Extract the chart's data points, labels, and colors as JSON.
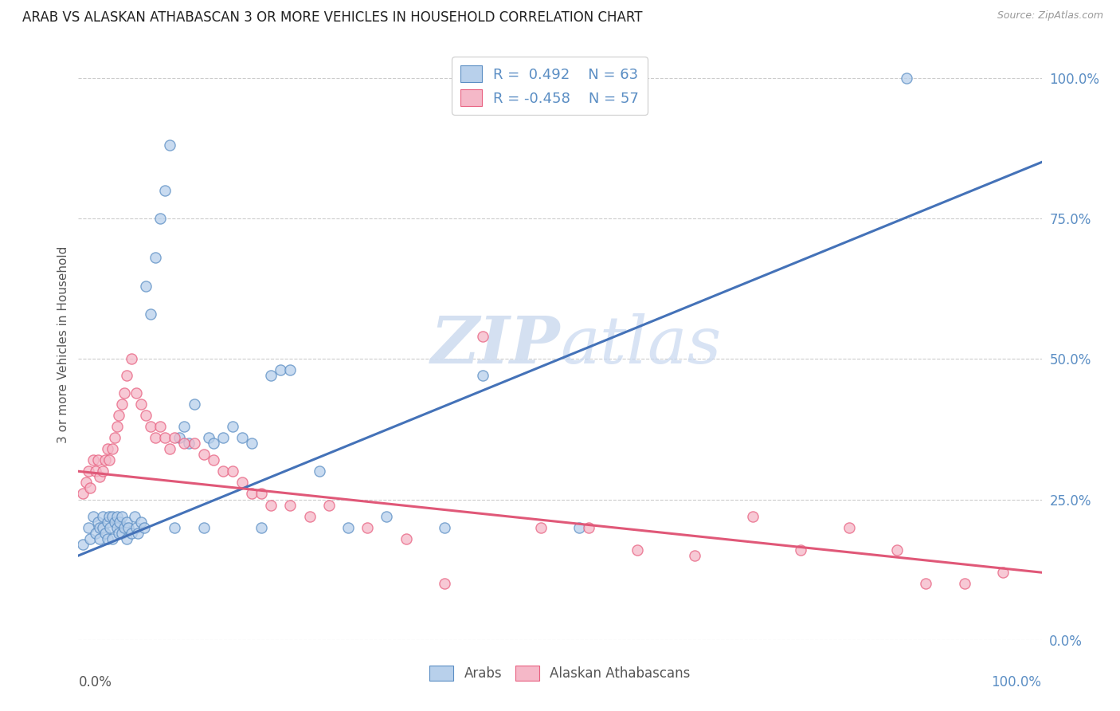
{
  "title": "ARAB VS ALASKAN ATHABASCAN 3 OR MORE VEHICLES IN HOUSEHOLD CORRELATION CHART",
  "source": "Source: ZipAtlas.com",
  "ylabel": "3 or more Vehicles in Household",
  "xlim": [
    0.0,
    1.0
  ],
  "ylim": [
    0.0,
    1.05
  ],
  "ytick_labels": [
    "0.0%",
    "25.0%",
    "50.0%",
    "75.0%",
    "100.0%"
  ],
  "ytick_values": [
    0.0,
    0.25,
    0.5,
    0.75,
    1.0
  ],
  "legend_arab_r": "0.492",
  "legend_arab_n": "63",
  "legend_athabascan_r": "-0.458",
  "legend_athabascan_n": "57",
  "arab_fill_color": "#b8d0eb",
  "athabascan_fill_color": "#f5b8c8",
  "arab_edge_color": "#5b8ec4",
  "athabascan_edge_color": "#e86080",
  "arab_line_color": "#4472b8",
  "athabascan_line_color": "#e05878",
  "watermark_color": "#d0ddf0",
  "tick_color": "#5b8ec4",
  "background_color": "#ffffff",
  "arab_scatter_x": [
    0.005,
    0.01,
    0.012,
    0.015,
    0.018,
    0.02,
    0.022,
    0.022,
    0.025,
    0.025,
    0.028,
    0.03,
    0.03,
    0.032,
    0.033,
    0.035,
    0.035,
    0.038,
    0.04,
    0.04,
    0.042,
    0.043,
    0.045,
    0.045,
    0.048,
    0.05,
    0.05,
    0.052,
    0.055,
    0.058,
    0.06,
    0.062,
    0.065,
    0.068,
    0.07,
    0.075,
    0.08,
    0.085,
    0.09,
    0.095,
    0.1,
    0.105,
    0.11,
    0.115,
    0.12,
    0.13,
    0.135,
    0.14,
    0.15,
    0.16,
    0.17,
    0.18,
    0.19,
    0.2,
    0.21,
    0.22,
    0.25,
    0.28,
    0.32,
    0.38,
    0.42,
    0.52,
    0.86
  ],
  "arab_scatter_y": [
    0.17,
    0.2,
    0.18,
    0.22,
    0.19,
    0.21,
    0.2,
    0.18,
    0.22,
    0.2,
    0.19,
    0.21,
    0.18,
    0.22,
    0.2,
    0.18,
    0.22,
    0.21,
    0.22,
    0.2,
    0.19,
    0.21,
    0.22,
    0.19,
    0.2,
    0.21,
    0.18,
    0.2,
    0.19,
    0.22,
    0.2,
    0.19,
    0.21,
    0.2,
    0.63,
    0.58,
    0.68,
    0.75,
    0.8,
    0.88,
    0.2,
    0.36,
    0.38,
    0.35,
    0.42,
    0.2,
    0.36,
    0.35,
    0.36,
    0.38,
    0.36,
    0.35,
    0.2,
    0.47,
    0.48,
    0.48,
    0.3,
    0.2,
    0.22,
    0.2,
    0.47,
    0.2,
    1.0
  ],
  "athabascan_scatter_x": [
    0.005,
    0.008,
    0.01,
    0.012,
    0.015,
    0.018,
    0.02,
    0.022,
    0.025,
    0.028,
    0.03,
    0.032,
    0.035,
    0.038,
    0.04,
    0.042,
    0.045,
    0.048,
    0.05,
    0.055,
    0.06,
    0.065,
    0.07,
    0.075,
    0.08,
    0.085,
    0.09,
    0.095,
    0.1,
    0.11,
    0.12,
    0.13,
    0.14,
    0.15,
    0.16,
    0.17,
    0.18,
    0.19,
    0.2,
    0.22,
    0.24,
    0.26,
    0.3,
    0.34,
    0.38,
    0.42,
    0.48,
    0.53,
    0.58,
    0.64,
    0.7,
    0.75,
    0.8,
    0.85,
    0.88,
    0.92,
    0.96
  ],
  "athabascan_scatter_y": [
    0.26,
    0.28,
    0.3,
    0.27,
    0.32,
    0.3,
    0.32,
    0.29,
    0.3,
    0.32,
    0.34,
    0.32,
    0.34,
    0.36,
    0.38,
    0.4,
    0.42,
    0.44,
    0.47,
    0.5,
    0.44,
    0.42,
    0.4,
    0.38,
    0.36,
    0.38,
    0.36,
    0.34,
    0.36,
    0.35,
    0.35,
    0.33,
    0.32,
    0.3,
    0.3,
    0.28,
    0.26,
    0.26,
    0.24,
    0.24,
    0.22,
    0.24,
    0.2,
    0.18,
    0.1,
    0.54,
    0.2,
    0.2,
    0.16,
    0.15,
    0.22,
    0.16,
    0.2,
    0.16,
    0.1,
    0.1,
    0.12
  ],
  "arab_line_x0": 0.0,
  "arab_line_x1": 1.0,
  "arab_line_y0": 0.15,
  "arab_line_y1": 0.85,
  "ath_line_x0": 0.0,
  "ath_line_x1": 1.0,
  "ath_line_y0": 0.3,
  "ath_line_y1": 0.12
}
